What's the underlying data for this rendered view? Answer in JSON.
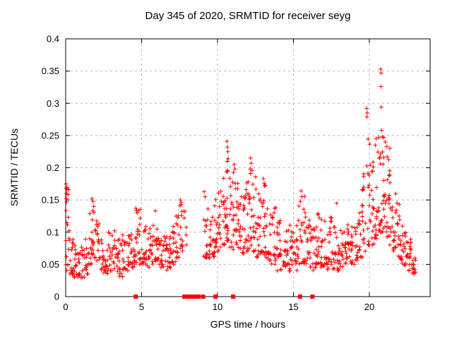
{
  "chart_data": {
    "type": "scatter",
    "title": "Day 345 of 2020, SRMTID for receiver seyg",
    "xlabel": "GPS time / hours",
    "ylabel": "SRMTID / TECUs",
    "xlim": [
      0,
      24
    ],
    "ylim": [
      0,
      0.4
    ],
    "xticks": {
      "values": [
        0,
        5,
        10,
        15,
        20
      ],
      "labels": [
        "0",
        "5",
        "10",
        "15",
        "20"
      ]
    },
    "yticks": {
      "values": [
        0,
        0.05,
        0.1,
        0.15,
        0.2,
        0.25,
        0.3,
        0.35,
        0.4
      ],
      "labels": [
        "0",
        "0.05",
        "0.1",
        "0.15",
        "0.2",
        "0.25",
        "0.3",
        "0.35",
        "0.4"
      ]
    },
    "grid": {
      "enabled": true,
      "color": "#b9b9b9",
      "dash": "3,4"
    },
    "marker": {
      "shape": "plus",
      "color": "#ff0000",
      "size": 7
    },
    "legend": "none",
    "density_bins_format": [
      "t_start_hours",
      "t_width_hours",
      "n_points",
      "y_low_TECU",
      "y_high_TECU"
    ],
    "bins": [
      [
        0.0,
        0.25,
        16,
        0.04,
        0.17
      ],
      [
        0.25,
        0.25,
        14,
        0.035,
        0.12
      ],
      [
        0.5,
        0.25,
        14,
        0.03,
        0.09
      ],
      [
        0.75,
        0.25,
        12,
        0.03,
        0.08
      ],
      [
        1.0,
        0.25,
        12,
        0.025,
        0.08
      ],
      [
        1.25,
        0.25,
        12,
        0.035,
        0.09
      ],
      [
        1.5,
        0.25,
        13,
        0.05,
        0.145
      ],
      [
        1.75,
        0.25,
        14,
        0.06,
        0.152
      ],
      [
        2.0,
        0.25,
        13,
        0.05,
        0.12
      ],
      [
        2.25,
        0.25,
        12,
        0.04,
        0.1
      ],
      [
        2.5,
        0.25,
        12,
        0.035,
        0.085
      ],
      [
        2.75,
        0.25,
        12,
        0.04,
        0.105
      ],
      [
        3.0,
        0.25,
        12,
        0.04,
        0.115
      ],
      [
        3.25,
        0.25,
        12,
        0.035,
        0.09
      ],
      [
        3.5,
        0.25,
        13,
        0.03,
        0.09
      ],
      [
        3.75,
        0.25,
        13,
        0.04,
        0.1
      ],
      [
        4.0,
        0.25,
        12,
        0.04,
        0.095
      ],
      [
        4.25,
        0.25,
        13,
        0.045,
        0.11
      ],
      [
        4.5,
        0.25,
        14,
        0.05,
        0.135
      ],
      [
        4.75,
        0.25,
        13,
        0.05,
        0.14
      ],
      [
        5.0,
        0.25,
        12,
        0.05,
        0.12
      ],
      [
        5.25,
        0.25,
        12,
        0.045,
        0.11
      ],
      [
        5.5,
        0.25,
        12,
        0.05,
        0.12
      ],
      [
        5.75,
        0.25,
        12,
        0.055,
        0.133
      ],
      [
        6.0,
        0.25,
        13,
        0.05,
        0.11
      ],
      [
        6.25,
        0.25,
        13,
        0.045,
        0.1
      ],
      [
        6.5,
        0.25,
        13,
        0.04,
        0.095
      ],
      [
        6.75,
        0.25,
        13,
        0.045,
        0.1
      ],
      [
        7.0,
        0.25,
        13,
        0.05,
        0.115
      ],
      [
        7.25,
        0.25,
        13,
        0.06,
        0.137
      ],
      [
        7.5,
        0.25,
        12,
        0.07,
        0.15
      ],
      [
        7.75,
        0.25,
        6,
        0.08,
        0.135
      ],
      [
        9.05,
        0.25,
        13,
        0.06,
        0.163
      ],
      [
        9.3,
        0.25,
        13,
        0.055,
        0.15
      ],
      [
        9.55,
        0.25,
        12,
        0.06,
        0.14
      ],
      [
        9.8,
        0.25,
        13,
        0.07,
        0.16
      ],
      [
        10.05,
        0.25,
        13,
        0.07,
        0.17
      ],
      [
        10.3,
        0.25,
        14,
        0.08,
        0.19
      ],
      [
        10.55,
        0.25,
        15,
        0.08,
        0.22
      ],
      [
        10.8,
        0.25,
        14,
        0.07,
        0.19
      ],
      [
        11.05,
        0.25,
        15,
        0.08,
        0.2
      ],
      [
        11.3,
        0.25,
        15,
        0.07,
        0.185
      ],
      [
        11.55,
        0.25,
        14,
        0.065,
        0.17
      ],
      [
        11.8,
        0.25,
        14,
        0.07,
        0.18
      ],
      [
        12.05,
        0.25,
        15,
        0.075,
        0.21
      ],
      [
        12.3,
        0.25,
        15,
        0.07,
        0.19
      ],
      [
        12.55,
        0.25,
        14,
        0.06,
        0.17
      ],
      [
        12.8,
        0.25,
        14,
        0.065,
        0.175
      ],
      [
        13.05,
        0.25,
        14,
        0.06,
        0.18
      ],
      [
        13.3,
        0.25,
        13,
        0.055,
        0.15
      ],
      [
        13.55,
        0.25,
        13,
        0.05,
        0.14
      ],
      [
        13.8,
        0.25,
        13,
        0.04,
        0.15
      ],
      [
        14.05,
        0.25,
        13,
        0.04,
        0.13
      ],
      [
        14.3,
        0.25,
        13,
        0.045,
        0.12
      ],
      [
        14.55,
        0.25,
        13,
        0.04,
        0.115
      ],
      [
        14.8,
        0.25,
        13,
        0.045,
        0.11
      ],
      [
        15.05,
        0.25,
        13,
        0.04,
        0.12
      ],
      [
        15.3,
        0.25,
        13,
        0.05,
        0.15
      ],
      [
        15.55,
        0.25,
        13,
        0.05,
        0.16
      ],
      [
        15.8,
        0.25,
        13,
        0.045,
        0.12
      ],
      [
        16.05,
        0.25,
        13,
        0.04,
        0.11
      ],
      [
        16.3,
        0.25,
        13,
        0.045,
        0.115
      ],
      [
        16.55,
        0.25,
        13,
        0.05,
        0.13
      ],
      [
        16.8,
        0.25,
        13,
        0.045,
        0.12
      ],
      [
        17.05,
        0.25,
        12,
        0.04,
        0.125
      ],
      [
        17.3,
        0.25,
        13,
        0.045,
        0.13
      ],
      [
        17.55,
        0.25,
        12,
        0.04,
        0.12
      ],
      [
        17.8,
        0.25,
        12,
        0.04,
        0.145
      ],
      [
        18.05,
        0.25,
        12,
        0.045,
        0.105
      ],
      [
        18.3,
        0.25,
        13,
        0.05,
        0.11
      ],
      [
        18.55,
        0.25,
        13,
        0.045,
        0.115
      ],
      [
        18.8,
        0.25,
        13,
        0.05,
        0.12
      ],
      [
        19.05,
        0.25,
        13,
        0.055,
        0.13
      ],
      [
        19.3,
        0.25,
        13,
        0.06,
        0.15
      ],
      [
        19.55,
        0.25,
        14,
        0.07,
        0.2
      ],
      [
        19.8,
        0.25,
        15,
        0.08,
        0.27
      ],
      [
        20.05,
        0.25,
        15,
        0.08,
        0.22
      ],
      [
        20.3,
        0.25,
        15,
        0.09,
        0.24
      ],
      [
        20.55,
        0.25,
        16,
        0.1,
        0.28
      ],
      [
        20.8,
        0.25,
        16,
        0.1,
        0.25
      ],
      [
        21.05,
        0.25,
        15,
        0.09,
        0.23
      ],
      [
        21.3,
        0.25,
        14,
        0.08,
        0.2
      ],
      [
        21.55,
        0.25,
        14,
        0.07,
        0.17
      ],
      [
        21.8,
        0.25,
        13,
        0.06,
        0.15
      ],
      [
        22.05,
        0.25,
        13,
        0.05,
        0.12
      ],
      [
        22.3,
        0.25,
        13,
        0.045,
        0.1
      ],
      [
        22.55,
        0.25,
        13,
        0.04,
        0.095
      ],
      [
        22.8,
        0.25,
        14,
        0.035,
        0.065
      ]
    ],
    "peak_points": [
      [
        0.02,
        0.175
      ],
      [
        0.03,
        0.168
      ],
      [
        0.05,
        0.16
      ],
      [
        0.04,
        0.152
      ],
      [
        0.06,
        0.147
      ],
      [
        1.72,
        0.152
      ],
      [
        1.8,
        0.148
      ],
      [
        1.85,
        0.14
      ],
      [
        4.62,
        0.137
      ],
      [
        4.7,
        0.13
      ],
      [
        5.9,
        0.133
      ],
      [
        7.55,
        0.15
      ],
      [
        7.6,
        0.143
      ],
      [
        9.12,
        0.163
      ],
      [
        9.18,
        0.155
      ],
      [
        10.62,
        0.241
      ],
      [
        10.65,
        0.232
      ],
      [
        10.68,
        0.225
      ],
      [
        10.7,
        0.214
      ],
      [
        10.66,
        0.196
      ],
      [
        11.1,
        0.205
      ],
      [
        11.15,
        0.198
      ],
      [
        12.18,
        0.215
      ],
      [
        12.22,
        0.207
      ],
      [
        12.28,
        0.196
      ],
      [
        13.02,
        0.183
      ],
      [
        13.08,
        0.176
      ],
      [
        15.5,
        0.164
      ],
      [
        15.55,
        0.155
      ],
      [
        17.85,
        0.145
      ],
      [
        19.82,
        0.292
      ],
      [
        19.84,
        0.279
      ],
      [
        19.86,
        0.285
      ],
      [
        20.4,
        0.235
      ],
      [
        20.45,
        0.245
      ],
      [
        20.75,
        0.353
      ],
      [
        20.77,
        0.347
      ],
      [
        20.76,
        0.326
      ],
      [
        20.78,
        0.294
      ],
      [
        20.8,
        0.258
      ],
      [
        20.95,
        0.247
      ],
      [
        21.05,
        0.24
      ],
      [
        21.15,
        0.233
      ],
      [
        21.35,
        0.23
      ]
    ],
    "zero_markers": {
      "color": "#ff0000",
      "block_hours": [
        7.68,
        8.88
      ],
      "single_hours": [
        4.62,
        9.05,
        9.87,
        11.03,
        15.44,
        16.25
      ]
    }
  }
}
